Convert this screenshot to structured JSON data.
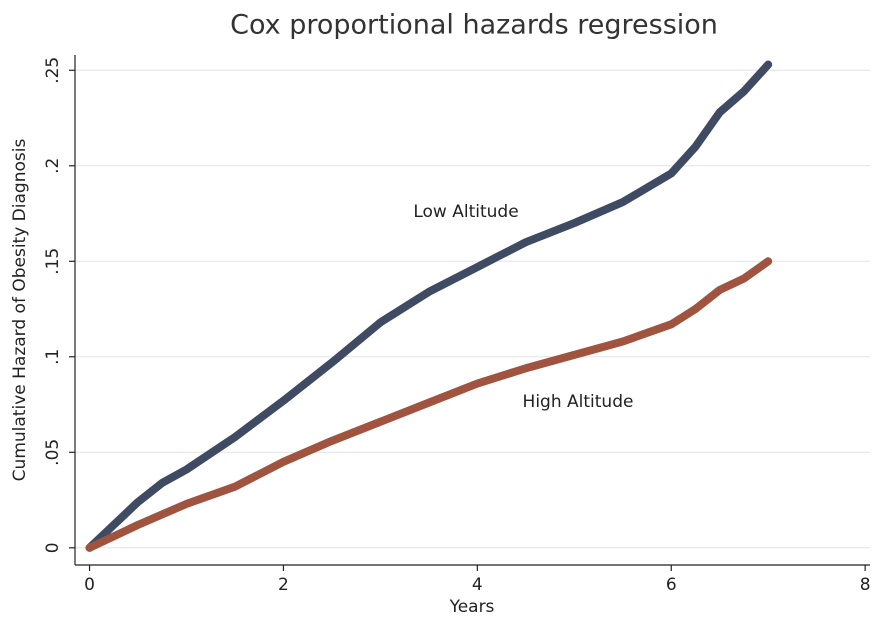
{
  "chart_data": {
    "type": "line",
    "title": "Cox proportional hazards regression",
    "xlabel": "Years",
    "ylabel": "Cumulative Hazard of Obesity Diagnosis",
    "series": [
      {
        "name": "Low Altitude",
        "color": "#3f4b62",
        "x": [
          0,
          0.25,
          0.5,
          0.75,
          1,
          1.5,
          2,
          2.5,
          3,
          3.5,
          4,
          4.5,
          5,
          5.5,
          6,
          6.25,
          6.5,
          6.75,
          7
        ],
        "values": [
          0,
          0.012,
          0.024,
          0.034,
          0.041,
          0.058,
          0.077,
          0.097,
          0.118,
          0.134,
          0.147,
          0.16,
          0.17,
          0.181,
          0.196,
          0.21,
          0.228,
          0.239,
          0.253
        ]
      },
      {
        "name": "High Altitude",
        "color": "#a0533e",
        "x": [
          0,
          0.5,
          1,
          1.5,
          2,
          2.5,
          3,
          3.5,
          4,
          4.5,
          5,
          5.5,
          6,
          6.25,
          6.5,
          6.75,
          7
        ],
        "values": [
          0,
          0.012,
          0.023,
          0.032,
          0.045,
          0.056,
          0.066,
          0.076,
          0.086,
          0.094,
          0.101,
          0.108,
          0.117,
          0.125,
          0.135,
          0.141,
          0.15
        ]
      }
    ],
    "xlim": [
      -0.15,
      8.05
    ],
    "xticks": [
      0,
      2,
      4,
      6,
      8
    ],
    "ylim": [
      -0.009,
      0.258
    ],
    "yticks": [
      0,
      {
        "value": 0.05,
        "label": ".05"
      },
      {
        "value": 0.1,
        "label": ".1"
      },
      {
        "value": 0.15,
        "label": ".15"
      },
      {
        "value": 0.2,
        "label": ".2"
      },
      {
        "value": 0.25,
        "label": ".25"
      }
    ],
    "grid": true
  }
}
